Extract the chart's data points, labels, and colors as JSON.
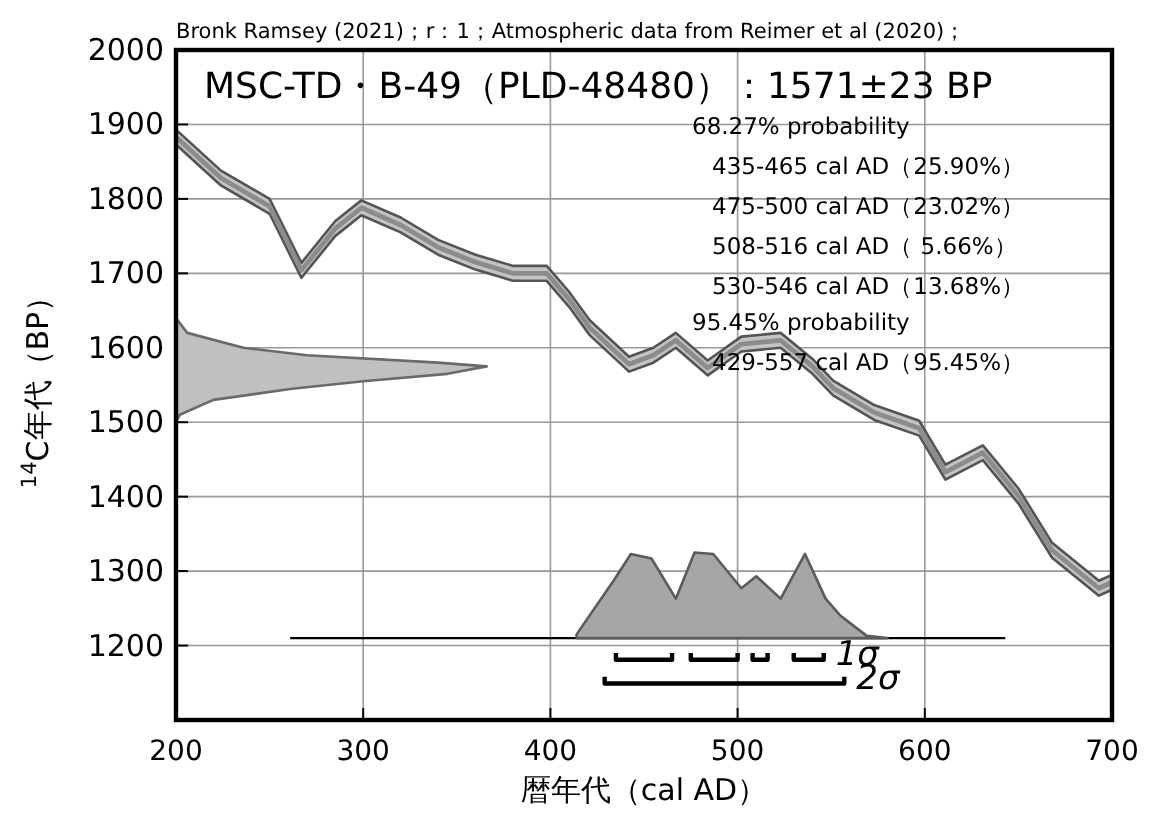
{
  "chart_data": {
    "type": "line",
    "title": "MSC-TD・B-49（PLD-48480）：1571±23 BP",
    "xlabel": "暦年代（cal AD）",
    "ylabel": "$^{14}$C年代（BP）",
    "annotations": [
      "Bronk Ramsey (2021)；r：1；Atmospheric data from Reimer et al (2020)；",
      "68.27% probability",
      "435-465 cal AD（25.90%）",
      "475-500 cal AD（23.02%）",
      "508-516 cal AD（ 5.66%）",
      "530-546 cal AD（13.68%）",
      "95.45% probability",
      "429-557 cal AD（95.45%）"
    ],
    "xlim": [
      200,
      700
    ],
    "ylim": [
      1100,
      2000
    ],
    "xticks": [
      200,
      300,
      400,
      500,
      600,
      700
    ],
    "yticks": [
      {
        "value": 1100,
        "label": null
      },
      1200,
      1300,
      1400,
      1500,
      1600,
      1700,
      1800,
      1900,
      2000
    ],
    "grid": true,
    "series": [
      {
        "color": "#8c8c8c",
        "x": [
          200,
          224,
          250,
          267,
          285,
          299,
          320,
          340,
          360,
          380,
          398,
          410,
          421,
          442,
          455,
          467,
          484,
          502,
          523,
          540,
          551,
          573,
          597,
          611,
          631,
          650,
          668,
          693,
          700
        ],
        "values": [
          1883,
          1828,
          1790,
          1704,
          1760,
          1788,
          1765,
          1735,
          1715,
          1700,
          1700,
          1665,
          1627,
          1578,
          1590,
          1610,
          1573,
          1605,
          1610,
          1575,
          1546,
          1513,
          1492,
          1433,
          1459,
          1401,
          1328,
          1277,
          1285
        ],
        "lower": [
          1873,
          1818,
          1780,
          1694,
          1750,
          1778,
          1755,
          1725,
          1705,
          1690,
          1690,
          1655,
          1617,
          1568,
          1580,
          1600,
          1563,
          1595,
          1600,
          1565,
          1536,
          1503,
          1482,
          1423,
          1449,
          1391,
          1318,
          1267,
          1275
        ],
        "upper": [
          1893,
          1838,
          1800,
          1714,
          1770,
          1798,
          1775,
          1745,
          1725,
          1710,
          1710,
          1675,
          1637,
          1588,
          1600,
          1620,
          1583,
          1615,
          1620,
          1585,
          1556,
          1523,
          1502,
          1443,
          1469,
          1411,
          1338,
          1287,
          1295
        ]
      },
      {
        "type": "area",
        "color": "#c0c0c0",
        "x": [
          200,
          206,
          236,
          270,
          340,
          366,
          345,
          300,
          262,
          220,
          202,
          200
        ],
        "values": [
          1640,
          1620,
          1600,
          1590,
          1580,
          1575,
          1565,
          1555,
          1545,
          1530,
          1510,
          1500
        ]
      },
      {
        "color": "#000000",
        "x": [
          261,
          643
        ],
        "values": [
          1210,
          1210
        ]
      },
      {
        "type": "area",
        "color": "#a6a6a6",
        "x": [
          414,
          434,
          443,
          454,
          467,
          477,
          487,
          502,
          510,
          523,
          536,
          547,
          555,
          569,
          580,
          414
        ],
        "values": [
          1215,
          1288,
          1323,
          1317,
          1263,
          1325,
          1323,
          1277,
          1293,
          1263,
          1323,
          1263,
          1240,
          1213,
          1210,
          1210
        ]
      },
      {
        "color": "#000000",
        "name": "1σ",
        "x": [
          435,
          435,
          465,
          465,
          null,
          475,
          475,
          500,
          500,
          null,
          508,
          508,
          516,
          516,
          null,
          530,
          530,
          546,
          546
        ],
        "values": [
          1190,
          1181,
          1181,
          1190,
          null,
          1190,
          1181,
          1181,
          1190,
          null,
          1190,
          1181,
          1181,
          1190,
          null,
          1190,
          1181,
          1181,
          1190
        ]
      },
      {
        "color": "#000000",
        "name": "2σ",
        "x": [
          429,
          429,
          557,
          557
        ],
        "values": [
          1158,
          1149,
          1149,
          1158
        ]
      }
    ]
  }
}
